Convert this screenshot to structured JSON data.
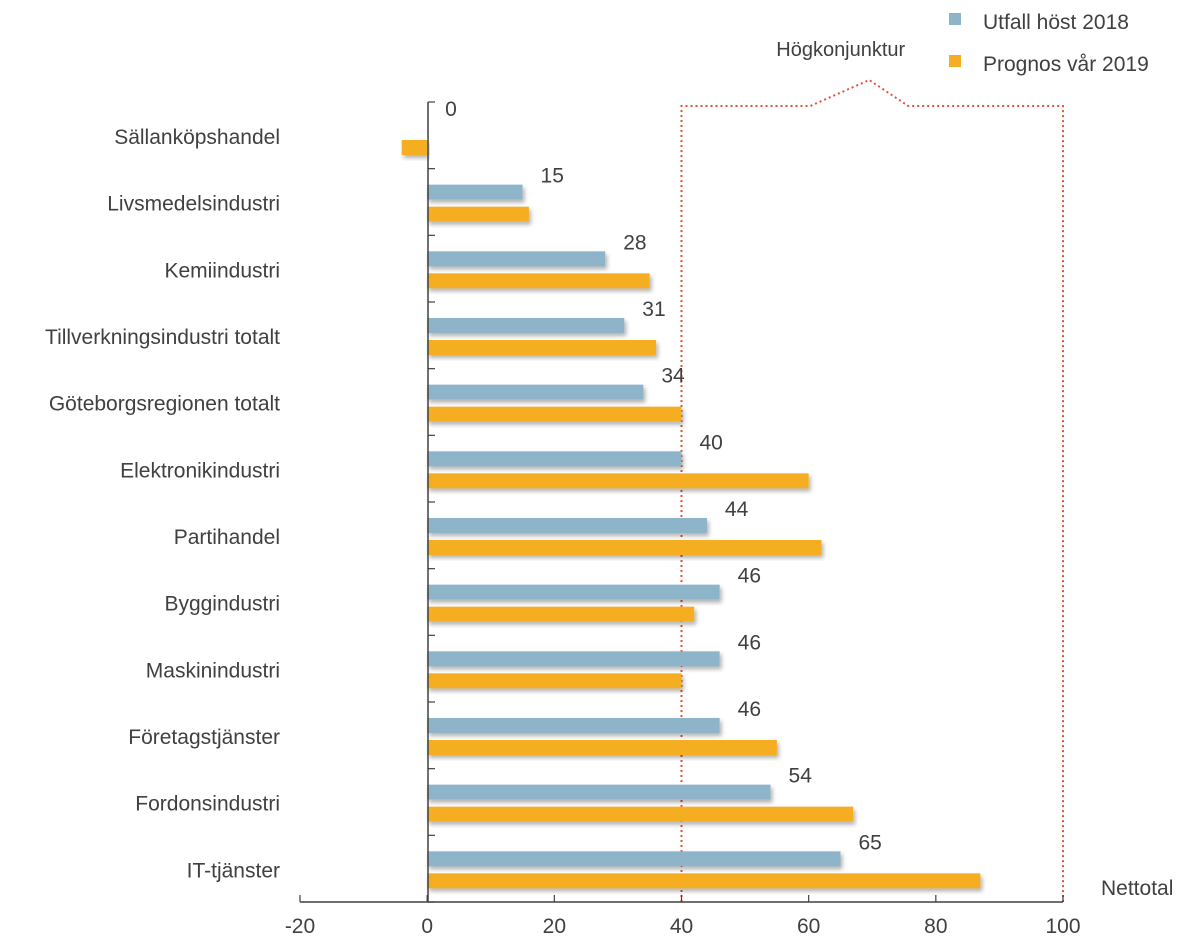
{
  "chart_data": {
    "type": "bar",
    "orientation": "horizontal",
    "categories": [
      "Sällanköpshandel",
      "Livsmedelsindustri",
      "Kemiindustri",
      "Tillverkningsindustri totalt",
      "Göteborgsregionen totalt",
      "Elektronikindustri",
      "Partihandel",
      "Byggindustri",
      "Maskinindustri",
      "Företagstjänster",
      "Fordonsindustri",
      "IT-tjänster"
    ],
    "series": [
      {
        "name": "Utfall höst 2018",
        "color": "#8db4c8",
        "values": [
          0,
          15,
          28,
          31,
          34,
          40,
          44,
          46,
          46,
          46,
          54,
          65
        ],
        "data_labels": [
          "0",
          "15",
          "28",
          "31",
          "34",
          "40",
          "44",
          "46",
          "46",
          "46",
          "54",
          "65"
        ]
      },
      {
        "name": "Prognos vår 2019",
        "color": "#f5ae24",
        "values": [
          -4,
          16,
          35,
          36,
          40,
          60,
          62,
          42,
          40,
          55,
          67,
          87
        ]
      }
    ],
    "xlabel": "Nettotal",
    "xlim": [
      -20,
      100
    ],
    "xticks": [
      "-20",
      "0",
      "20",
      "40",
      "60",
      "80",
      "100"
    ],
    "annotation": {
      "text": "Högkonjunktur",
      "x_range": [
        40,
        100
      ],
      "color": "#e0533a"
    },
    "legend_position": "top-right",
    "grid": false
  }
}
